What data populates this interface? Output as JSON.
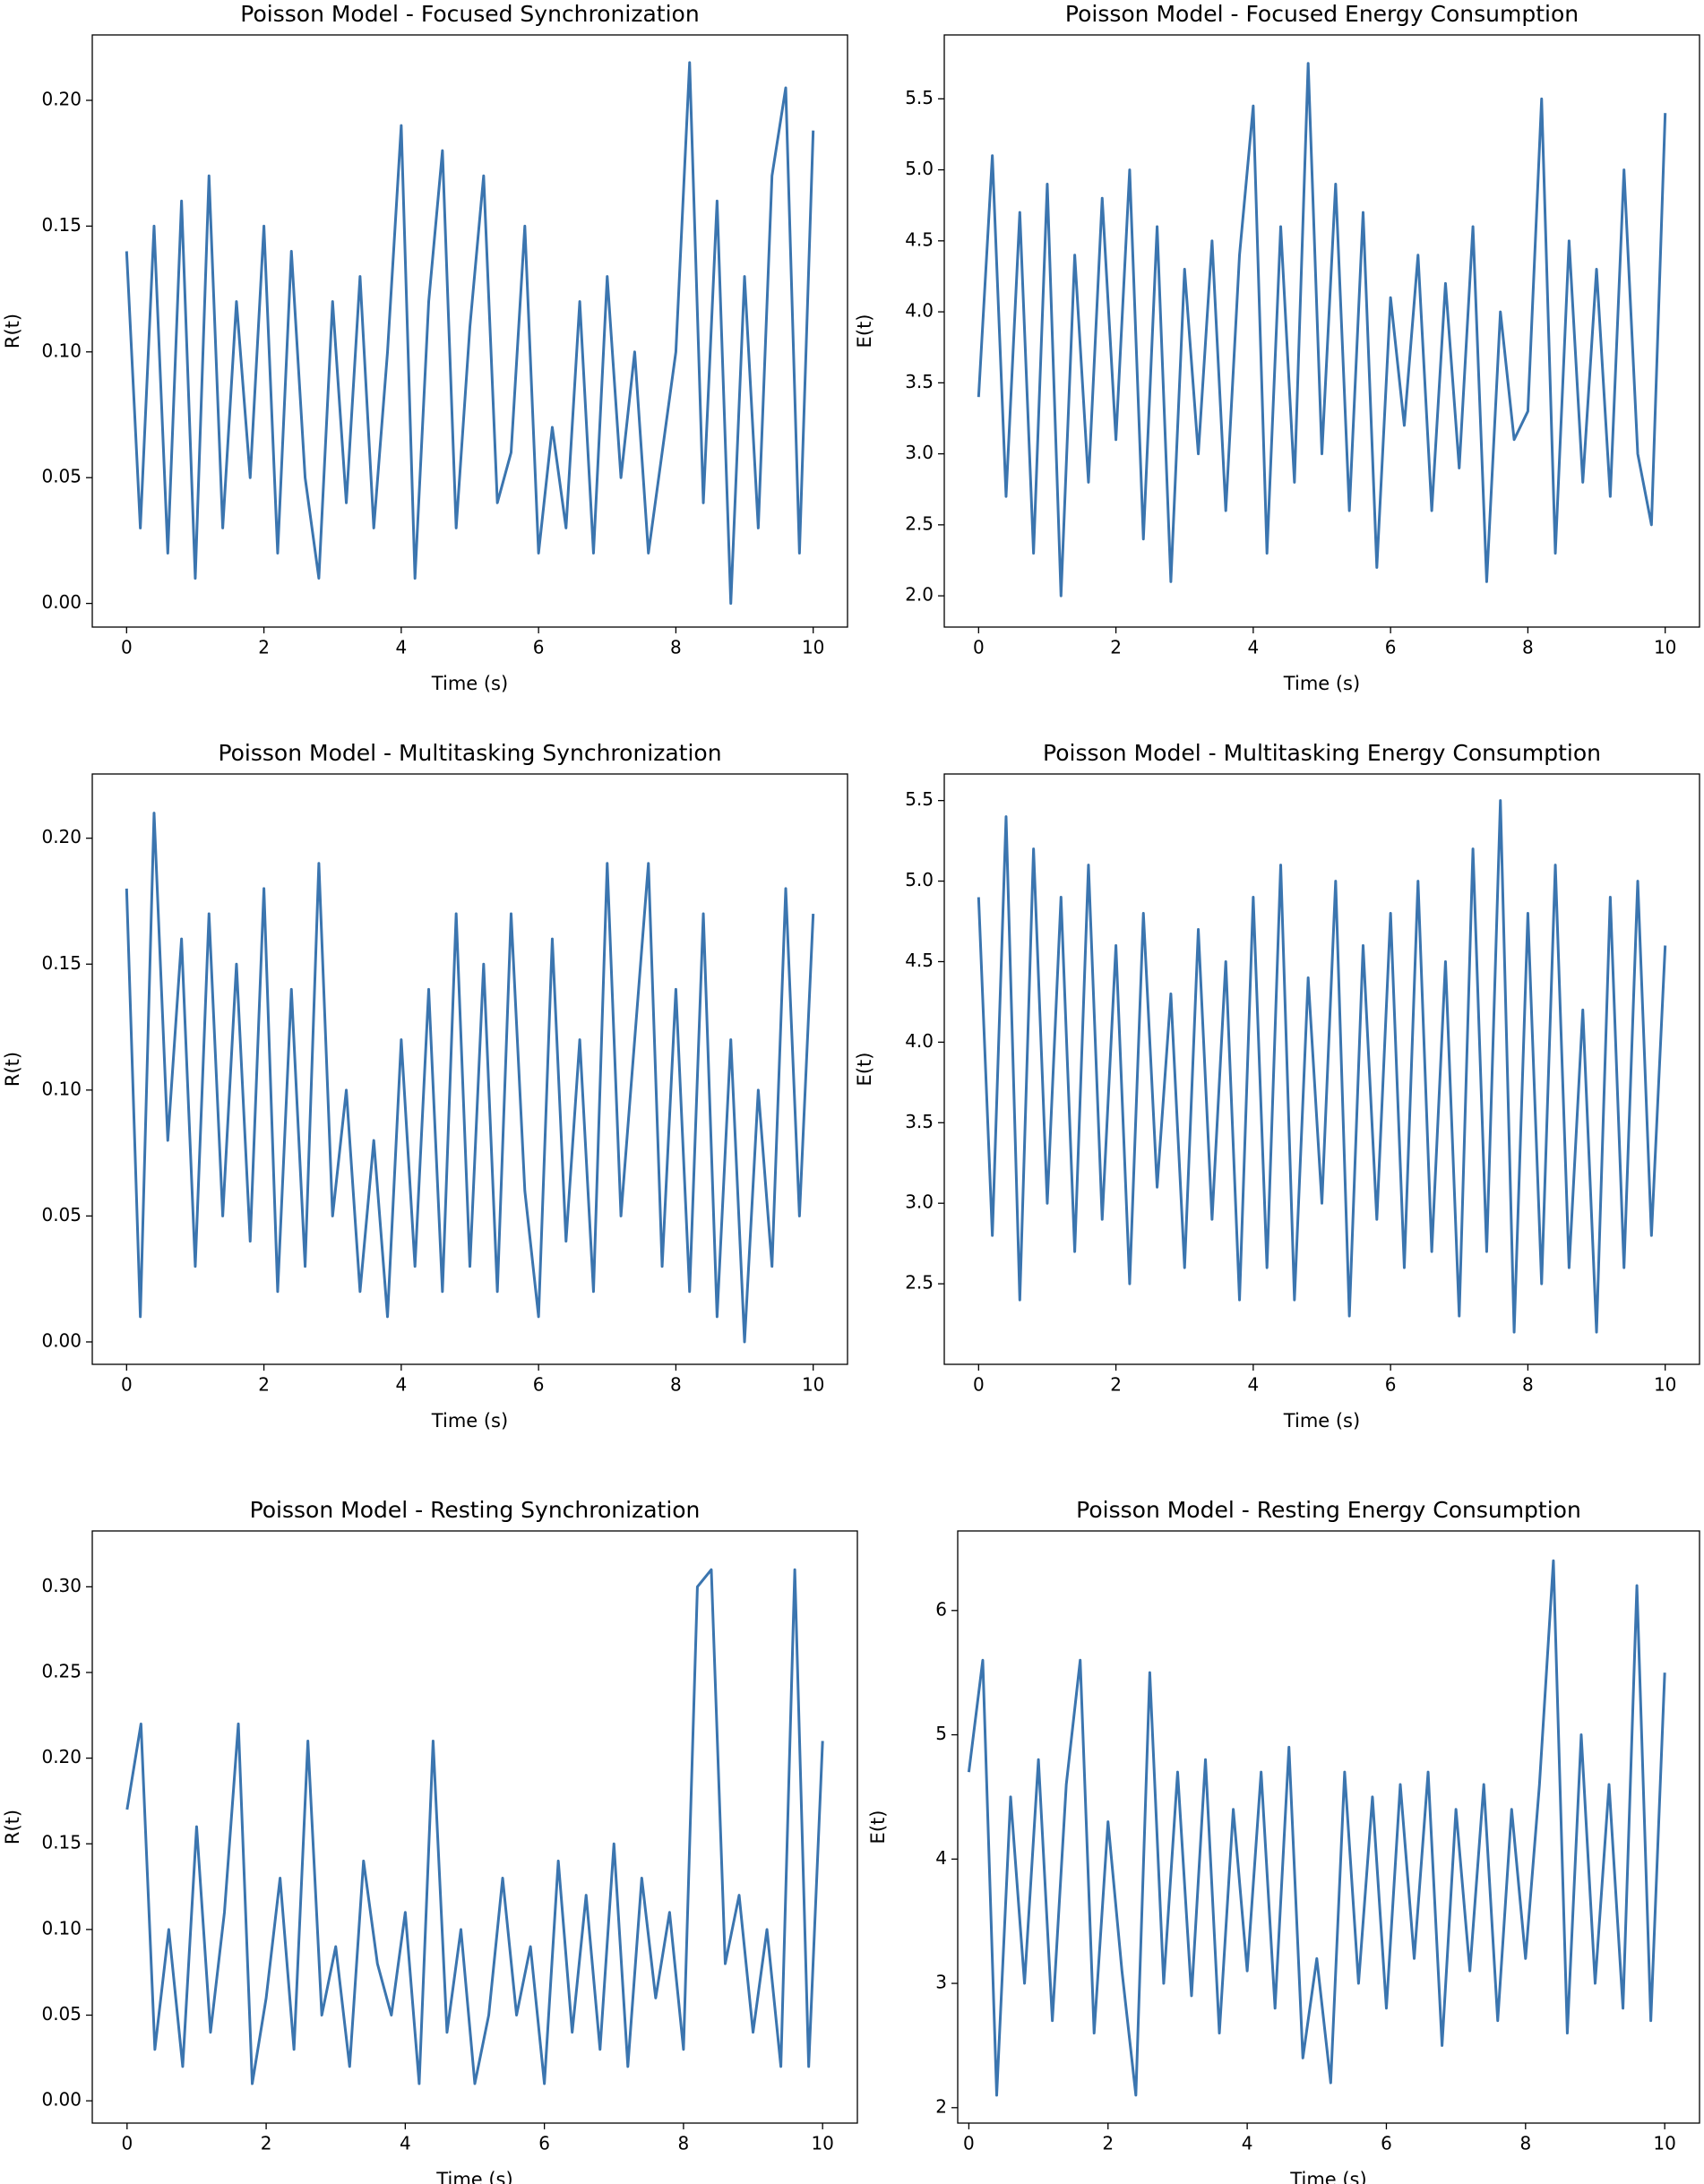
{
  "chart_data": [
    {
      "type": "line",
      "title": "Poisson Model - Focused Synchronization",
      "xlabel": "Time (s)",
      "ylabel": "R(t)",
      "color": "#3b75af",
      "x": [
        0,
        0.2,
        0.4,
        0.6,
        0.8,
        1,
        1.2,
        1.4,
        1.6,
        1.8,
        2,
        2.2,
        2.4,
        2.6,
        2.8,
        3,
        3.2,
        3.4,
        3.6,
        3.8,
        4,
        4.2,
        4.4,
        4.6,
        4.8,
        5,
        5.2,
        5.4,
        5.6,
        5.8,
        6,
        6.2,
        6.4,
        6.6,
        6.8,
        7,
        7.2,
        7.4,
        7.6,
        7.8,
        8,
        8.2,
        8.4,
        8.6,
        8.8,
        9,
        9.2,
        9.4,
        9.6,
        9.8,
        10
      ],
      "values": [
        0.14,
        0.03,
        0.15,
        0.02,
        0.16,
        0.01,
        0.17,
        0.03,
        0.12,
        0.05,
        0.15,
        0.02,
        0.14,
        0.05,
        0.01,
        0.12,
        0.04,
        0.13,
        0.03,
        0.1,
        0.19,
        0.01,
        0.12,
        0.18,
        0.03,
        0.11,
        0.17,
        0.04,
        0.06,
        0.15,
        0.02,
        0.07,
        0.03,
        0.12,
        0.02,
        0.13,
        0.05,
        0.1,
        0.02,
        0.06,
        0.1,
        0.215,
        0.04,
        0.16,
        0.0,
        0.13,
        0.03,
        0.17,
        0.205,
        0.02,
        0.188
      ],
      "xlim": [
        -0.5,
        10.5
      ],
      "ylim": [
        -0.0094,
        0.226
      ],
      "xticks": [
        0,
        2,
        4,
        6,
        8,
        10
      ],
      "yticks": [
        {
          "value": 0,
          "label": "0.00"
        },
        0.05,
        {
          "value": 0.1,
          "label": "0.10"
        },
        0.15,
        {
          "value": 0.2,
          "label": "0.20"
        }
      ]
    },
    {
      "type": "line",
      "title": "Poisson Model - Focused Energy Consumption",
      "xlabel": "Time (s)",
      "ylabel": "E(t)",
      "color": "#3b75af",
      "x": [
        0,
        0.2,
        0.4,
        0.6,
        0.8,
        1,
        1.2,
        1.4,
        1.6,
        1.8,
        2,
        2.2,
        2.4,
        2.6,
        2.8,
        3,
        3.2,
        3.4,
        3.6,
        3.8,
        4,
        4.2,
        4.4,
        4.6,
        4.8,
        5,
        5.2,
        5.4,
        5.6,
        5.8,
        6,
        6.2,
        6.4,
        6.6,
        6.8,
        7,
        7.2,
        7.4,
        7.6,
        7.8,
        8,
        8.2,
        8.4,
        8.6,
        8.8,
        9,
        9.2,
        9.4,
        9.6,
        9.8,
        10
      ],
      "values": [
        3.4,
        5.1,
        2.7,
        4.7,
        2.3,
        4.9,
        2.0,
        4.4,
        2.8,
        4.8,
        3.1,
        5.0,
        2.4,
        4.6,
        2.1,
        4.3,
        3.0,
        4.5,
        2.6,
        4.4,
        5.45,
        2.3,
        4.6,
        2.8,
        5.75,
        3.0,
        4.9,
        2.6,
        4.7,
        2.2,
        4.1,
        3.2,
        4.4,
        2.6,
        4.2,
        2.9,
        4.6,
        2.1,
        4.0,
        3.1,
        3.3,
        5.5,
        2.3,
        4.5,
        2.8,
        4.3,
        2.7,
        5.0,
        3.0,
        2.5,
        5.4
      ],
      "xlim": [
        -0.5,
        10.5
      ],
      "ylim": [
        1.78,
        5.95
      ],
      "xticks": [
        0,
        2,
        4,
        6,
        8,
        10
      ],
      "yticks": [
        {
          "value": 2,
          "label": "2.0"
        },
        2.5,
        {
          "value": 3,
          "label": "3.0"
        },
        3.5,
        {
          "value": 4,
          "label": "4.0"
        },
        4.5,
        {
          "value": 5,
          "label": "5.0"
        },
        5.5
      ]
    },
    {
      "type": "line",
      "title": "Poisson Model - Multitasking Synchronization",
      "xlabel": "Time (s)",
      "ylabel": "R(t)",
      "color": "#3b75af",
      "x": [
        0,
        0.2,
        0.4,
        0.6,
        0.8,
        1,
        1.2,
        1.4,
        1.6,
        1.8,
        2,
        2.2,
        2.4,
        2.6,
        2.8,
        3,
        3.2,
        3.4,
        3.6,
        3.8,
        4,
        4.2,
        4.4,
        4.6,
        4.8,
        5,
        5.2,
        5.4,
        5.6,
        5.8,
        6,
        6.2,
        6.4,
        6.6,
        6.8,
        7,
        7.2,
        7.4,
        7.6,
        7.8,
        8,
        8.2,
        8.4,
        8.6,
        8.8,
        9,
        9.2,
        9.4,
        9.6,
        9.8,
        10
      ],
      "values": [
        0.18,
        0.01,
        0.21,
        0.08,
        0.16,
        0.03,
        0.17,
        0.05,
        0.15,
        0.04,
        0.18,
        0.02,
        0.14,
        0.03,
        0.19,
        0.05,
        0.1,
        0.02,
        0.08,
        0.01,
        0.12,
        0.03,
        0.14,
        0.02,
        0.17,
        0.03,
        0.15,
        0.02,
        0.17,
        0.06,
        0.01,
        0.16,
        0.04,
        0.12,
        0.02,
        0.19,
        0.05,
        0.12,
        0.19,
        0.03,
        0.14,
        0.02,
        0.17,
        0.01,
        0.12,
        0.0,
        0.1,
        0.03,
        0.18,
        0.05,
        0.17
      ],
      "xlim": [
        -0.5,
        10.5
      ],
      "ylim": [
        -0.0089,
        0.2255
      ],
      "xticks": [
        0,
        2,
        4,
        6,
        8,
        10
      ],
      "yticks": [
        {
          "value": 0,
          "label": "0.00"
        },
        0.05,
        {
          "value": 0.1,
          "label": "0.10"
        },
        0.15,
        {
          "value": 0.2,
          "label": "0.20"
        }
      ]
    },
    {
      "type": "line",
      "title": "Poisson Model - Multitasking Energy Consumption",
      "xlabel": "Time (s)",
      "ylabel": "E(t)",
      "color": "#3b75af",
      "x": [
        0,
        0.2,
        0.4,
        0.6,
        0.8,
        1,
        1.2,
        1.4,
        1.6,
        1.8,
        2,
        2.2,
        2.4,
        2.6,
        2.8,
        3,
        3.2,
        3.4,
        3.6,
        3.8,
        4,
        4.2,
        4.4,
        4.6,
        4.8,
        5,
        5.2,
        5.4,
        5.6,
        5.8,
        6,
        6.2,
        6.4,
        6.6,
        6.8,
        7,
        7.2,
        7.4,
        7.6,
        7.8,
        8,
        8.2,
        8.4,
        8.6,
        8.8,
        9,
        9.2,
        9.4,
        9.6,
        9.8,
        10
      ],
      "values": [
        4.9,
        2.8,
        5.4,
        2.4,
        5.2,
        3.0,
        4.9,
        2.7,
        5.1,
        2.9,
        4.6,
        2.5,
        4.8,
        3.1,
        4.3,
        2.6,
        4.7,
        2.9,
        4.5,
        2.4,
        4.9,
        2.6,
        5.1,
        2.4,
        4.4,
        3.0,
        5.0,
        2.3,
        4.6,
        2.9,
        4.8,
        2.6,
        5.0,
        2.7,
        4.5,
        2.3,
        5.2,
        2.7,
        5.5,
        2.2,
        4.8,
        2.5,
        5.1,
        2.6,
        4.2,
        2.2,
        4.9,
        2.6,
        5.0,
        2.8,
        4.6
      ],
      "xlim": [
        -0.5,
        10.5
      ],
      "ylim": [
        2.0,
        5.665
      ],
      "xticks": [
        0,
        2,
        4,
        6,
        8,
        10
      ],
      "yticks": [
        2.5,
        {
          "value": 3,
          "label": "3.0"
        },
        3.5,
        {
          "value": 4,
          "label": "4.0"
        },
        4.5,
        {
          "value": 5,
          "label": "5.0"
        },
        5.5
      ]
    },
    {
      "type": "line",
      "title": "Poisson Model - Resting Synchronization",
      "xlabel": "Time (s)",
      "ylabel": "R(t)",
      "color": "#3b75af",
      "x": [
        0,
        0.2,
        0.4,
        0.6,
        0.8,
        1,
        1.2,
        1.4,
        1.6,
        1.8,
        2,
        2.2,
        2.4,
        2.6,
        2.8,
        3,
        3.2,
        3.4,
        3.6,
        3.8,
        4,
        4.2,
        4.4,
        4.6,
        4.8,
        5,
        5.2,
        5.4,
        5.6,
        5.8,
        6,
        6.2,
        6.4,
        6.6,
        6.8,
        7,
        7.2,
        7.4,
        7.6,
        7.8,
        8,
        8.2,
        8.4,
        8.6,
        8.8,
        9,
        9.2,
        9.4,
        9.6,
        9.8,
        10
      ],
      "values": [
        0.17,
        0.22,
        0.03,
        0.1,
        0.02,
        0.16,
        0.04,
        0.11,
        0.22,
        0.01,
        0.06,
        0.13,
        0.03,
        0.21,
        0.05,
        0.09,
        0.02,
        0.14,
        0.08,
        0.05,
        0.11,
        0.01,
        0.21,
        0.04,
        0.1,
        0.01,
        0.05,
        0.13,
        0.05,
        0.09,
        0.01,
        0.14,
        0.04,
        0.12,
        0.03,
        0.15,
        0.02,
        0.13,
        0.06,
        0.11,
        0.03,
        0.3,
        0.31,
        0.08,
        0.12,
        0.04,
        0.1,
        0.02,
        0.31,
        0.02,
        0.21
      ],
      "xlim": [
        -0.5,
        10.5
      ],
      "ylim": [
        -0.013,
        0.3326
      ],
      "xticks": [
        0,
        2,
        4,
        6,
        8,
        10
      ],
      "yticks": [
        {
          "value": 0,
          "label": "0.00"
        },
        0.05,
        {
          "value": 0.1,
          "label": "0.10"
        },
        0.15,
        {
          "value": 0.2,
          "label": "0.20"
        },
        0.25,
        {
          "value": 0.3,
          "label": "0.30"
        }
      ]
    },
    {
      "type": "line",
      "title": "Poisson Model - Resting Energy Consumption",
      "xlabel": "Time (s)",
      "ylabel": "E(t)",
      "color": "#3b75af",
      "x": [
        0,
        0.2,
        0.4,
        0.6,
        0.8,
        1,
        1.2,
        1.4,
        1.6,
        1.8,
        2,
        2.2,
        2.4,
        2.6,
        2.8,
        3,
        3.2,
        3.4,
        3.6,
        3.8,
        4,
        4.2,
        4.4,
        4.6,
        4.8,
        5,
        5.2,
        5.4,
        5.6,
        5.8,
        6,
        6.2,
        6.4,
        6.6,
        6.8,
        7,
        7.2,
        7.4,
        7.6,
        7.8,
        8,
        8.2,
        8.4,
        8.6,
        8.8,
        9,
        9.2,
        9.4,
        9.6,
        9.8,
        10
      ],
      "values": [
        4.7,
        5.6,
        2.1,
        4.5,
        3.0,
        4.8,
        2.7,
        4.6,
        5.6,
        2.6,
        4.3,
        3.1,
        2.1,
        5.5,
        3.0,
        4.7,
        2.9,
        4.8,
        2.6,
        4.4,
        3.1,
        4.7,
        2.8,
        4.9,
        2.4,
        3.2,
        2.2,
        4.7,
        3.0,
        4.5,
        2.8,
        4.6,
        3.2,
        4.7,
        2.5,
        4.4,
        3.1,
        4.6,
        2.7,
        4.4,
        3.2,
        4.6,
        6.4,
        2.6,
        5.0,
        3.0,
        4.6,
        2.8,
        6.2,
        2.7,
        5.5
      ],
      "xlim": [
        -0.16,
        10.5
      ],
      "ylim": [
        1.876,
        6.64
      ],
      "xticks": [
        0,
        2,
        4,
        6,
        8,
        10
      ],
      "yticks": [
        2,
        3,
        4,
        5,
        6
      ]
    }
  ]
}
